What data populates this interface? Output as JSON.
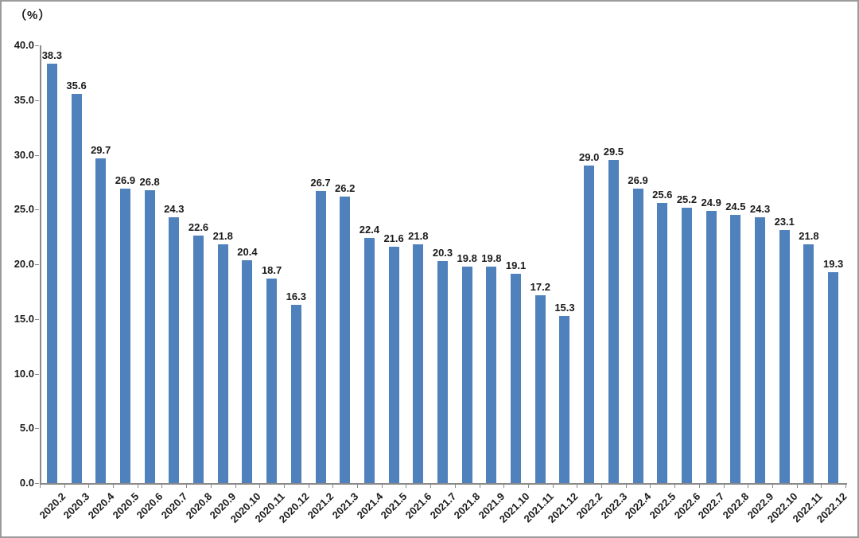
{
  "chart": {
    "unit_label": "（%）",
    "bar_color": "#4f81bd",
    "axis_color": "#8a8a8a",
    "text_color": "#1a1a1a",
    "background": "#ffffff"
  },
  "chart_data": {
    "type": "bar",
    "title": "",
    "xlabel": "",
    "ylabel": "（%）",
    "categories": [
      "2020.2",
      "2020.3",
      "2020.4",
      "2020.5",
      "2020.6",
      "2020.7",
      "2020.8",
      "2020.9",
      "2020.10",
      "2020.11",
      "2020.12",
      "2021.2",
      "2021.3",
      "2021.4",
      "2021.5",
      "2021.6",
      "2021.7",
      "2021.8",
      "2021.9",
      "2021.10",
      "2021.11",
      "2021.12",
      "2022.2",
      "2022.3",
      "2022.4",
      "2022.5",
      "2022.6",
      "2022.7",
      "2022.8",
      "2022.9",
      "2022.10",
      "2022.11",
      "2022.12"
    ],
    "values": [
      38.3,
      35.6,
      29.7,
      26.9,
      26.8,
      24.3,
      22.6,
      21.8,
      20.4,
      18.7,
      16.3,
      26.7,
      26.2,
      22.4,
      21.6,
      21.8,
      20.3,
      19.8,
      19.8,
      19.1,
      17.2,
      15.3,
      29.0,
      29.5,
      26.9,
      25.6,
      25.2,
      24.9,
      24.5,
      24.3,
      23.1,
      21.8,
      19.3
    ],
    "value_labels": [
      "38.3",
      "35.6",
      "29.7",
      "26.9",
      "26.8",
      "24.3",
      "22.6",
      "21.8",
      "20.4",
      "18.7",
      "16.3",
      "26.7",
      "26.2",
      "22.4",
      "21.6",
      "21.8",
      "20.3",
      "19.8",
      "19.8",
      "19.1",
      "17.2",
      "15.3",
      "29.0",
      "29.5",
      "26.9",
      "25.6",
      "25.2",
      "24.9",
      "24.5",
      "24.3",
      "23.1",
      "21.8",
      "19.3"
    ],
    "ylim": [
      0,
      40
    ],
    "ytick_step": 5,
    "ytick_labels": [
      "0.0",
      "5.0",
      "10.0",
      "15.0",
      "20.0",
      "25.0",
      "30.0",
      "35.0",
      "40.0"
    ],
    "grid": false,
    "legend_position": "none",
    "bar_color": "#4f81bd"
  }
}
